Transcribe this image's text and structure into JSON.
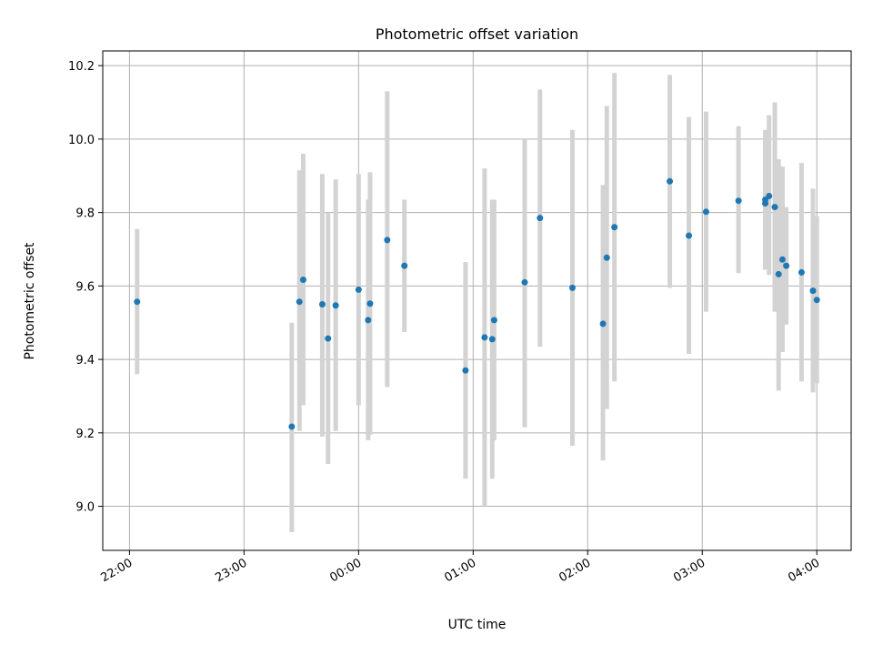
{
  "chart_data": {
    "type": "scatter",
    "title": "Photometric offset variation",
    "xlabel": "UTC time",
    "ylabel": "Photometric offset",
    "x_tick_labels": [
      "22:00",
      "23:00",
      "00:00",
      "01:00",
      "02:00",
      "03:00",
      "04:00"
    ],
    "x_tick_hours": [
      22,
      23,
      24,
      25,
      26,
      27,
      28
    ],
    "y_ticks": [
      9.0,
      9.2,
      9.4,
      9.6,
      9.8,
      10.0,
      10.2
    ],
    "y_tick_labels": [
      "9.0",
      "9.2",
      "9.4",
      "9.6",
      "9.8",
      "10.0",
      "10.2"
    ],
    "xlim": [
      "21:46",
      "04:18"
    ],
    "ylim": [
      8.88,
      10.24
    ],
    "grid": true,
    "marker_color": "#1f77b4",
    "errorbar_color": "#d3d3d3",
    "points": [
      {
        "t": "22:04",
        "y": 9.557,
        "lo": 9.36,
        "hi": 9.755
      },
      {
        "t": "23:25",
        "y": 9.217,
        "lo": 8.93,
        "hi": 9.5
      },
      {
        "t": "23:29",
        "y": 9.557,
        "lo": 9.205,
        "hi": 9.915
      },
      {
        "t": "23:31",
        "y": 9.617,
        "lo": 9.275,
        "hi": 9.96
      },
      {
        "t": "23:41",
        "y": 9.55,
        "lo": 9.19,
        "hi": 9.905
      },
      {
        "t": "23:44",
        "y": 9.457,
        "lo": 9.115,
        "hi": 9.8
      },
      {
        "t": "23:48",
        "y": 9.547,
        "lo": 9.205,
        "hi": 9.89
      },
      {
        "t": "00:00",
        "y": 9.59,
        "lo": 9.275,
        "hi": 9.905
      },
      {
        "t": "00:05",
        "y": 9.507,
        "lo": 9.18,
        "hi": 9.835
      },
      {
        "t": "00:06",
        "y": 9.552,
        "lo": 9.195,
        "hi": 9.91
      },
      {
        "t": "00:15",
        "y": 9.725,
        "lo": 9.325,
        "hi": 10.13
      },
      {
        "t": "00:24",
        "y": 9.655,
        "lo": 9.475,
        "hi": 9.835
      },
      {
        "t": "00:56",
        "y": 9.37,
        "lo": 9.075,
        "hi": 9.665
      },
      {
        "t": "01:06",
        "y": 9.46,
        "lo": 9.0,
        "hi": 9.92
      },
      {
        "t": "01:10",
        "y": 9.455,
        "lo": 9.075,
        "hi": 9.835
      },
      {
        "t": "01:11",
        "y": 9.507,
        "lo": 9.18,
        "hi": 9.835
      },
      {
        "t": "01:27",
        "y": 9.61,
        "lo": 9.215,
        "hi": 10.0
      },
      {
        "t": "01:35",
        "y": 9.785,
        "lo": 9.435,
        "hi": 10.135
      },
      {
        "t": "01:52",
        "y": 9.595,
        "lo": 9.165,
        "hi": 10.025
      },
      {
        "t": "02:08",
        "y": 9.497,
        "lo": 9.125,
        "hi": 9.875
      },
      {
        "t": "02:10",
        "y": 9.677,
        "lo": 9.265,
        "hi": 10.09
      },
      {
        "t": "02:14",
        "y": 9.76,
        "lo": 9.34,
        "hi": 10.18
      },
      {
        "t": "02:43",
        "y": 9.885,
        "lo": 9.595,
        "hi": 10.175
      },
      {
        "t": "02:53",
        "y": 9.737,
        "lo": 9.415,
        "hi": 10.06
      },
      {
        "t": "03:02",
        "y": 9.802,
        "lo": 9.53,
        "hi": 10.075
      },
      {
        "t": "03:19",
        "y": 9.832,
        "lo": 9.635,
        "hi": 10.035
      },
      {
        "t": "03:33",
        "y": 9.835,
        "lo": 9.645,
        "hi": 10.025
      },
      {
        "t": "03:33",
        "y": 9.825,
        "lo": 9.645,
        "hi": 10.005
      },
      {
        "t": "03:35",
        "y": 9.845,
        "lo": 9.63,
        "hi": 10.065
      },
      {
        "t": "03:38",
        "y": 9.815,
        "lo": 9.53,
        "hi": 10.1
      },
      {
        "t": "03:40",
        "y": 9.632,
        "lo": 9.315,
        "hi": 9.945
      },
      {
        "t": "03:42",
        "y": 9.672,
        "lo": 9.42,
        "hi": 9.925
      },
      {
        "t": "03:44",
        "y": 9.655,
        "lo": 9.495,
        "hi": 9.815
      },
      {
        "t": "03:52",
        "y": 9.637,
        "lo": 9.34,
        "hi": 9.935
      },
      {
        "t": "03:58",
        "y": 9.587,
        "lo": 9.31,
        "hi": 9.865
      },
      {
        "t": "04:00",
        "y": 9.562,
        "lo": 9.335,
        "hi": 9.79
      }
    ]
  }
}
